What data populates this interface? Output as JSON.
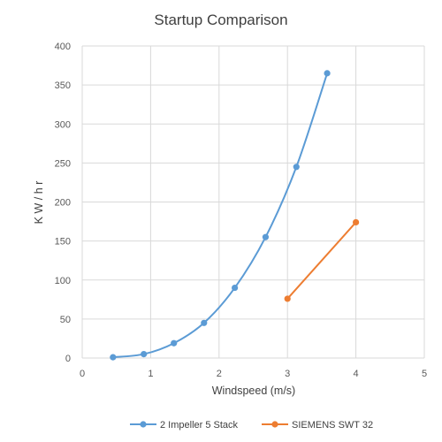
{
  "chart_data": {
    "type": "scatter",
    "title": "Startup Comparison",
    "xlabel": "Windspeed (m/s)",
    "ylabel": "K W / h r",
    "xlim": [
      0,
      5
    ],
    "ylim": [
      0,
      400
    ],
    "x_ticks": [
      0,
      1,
      2,
      3,
      4,
      5
    ],
    "y_ticks": [
      0,
      50,
      100,
      150,
      200,
      250,
      300,
      350,
      400
    ],
    "grid": true,
    "legend_position": "bottom",
    "series": [
      {
        "name": "2 Impeller 5 Stack",
        "color": "#5B9BD5",
        "line": "smooth",
        "marker": "circle",
        "x": [
          0.45,
          0.9,
          1.34,
          1.78,
          2.23,
          2.68,
          3.13,
          3.58
        ],
        "y": [
          1,
          5,
          19,
          45,
          90,
          155,
          245,
          365
        ]
      },
      {
        "name": "SIEMENS SWT 32",
        "color": "#ED7D31",
        "line": "straight",
        "marker": "circle",
        "x": [
          3,
          4
        ],
        "y": [
          76,
          174
        ]
      }
    ]
  }
}
